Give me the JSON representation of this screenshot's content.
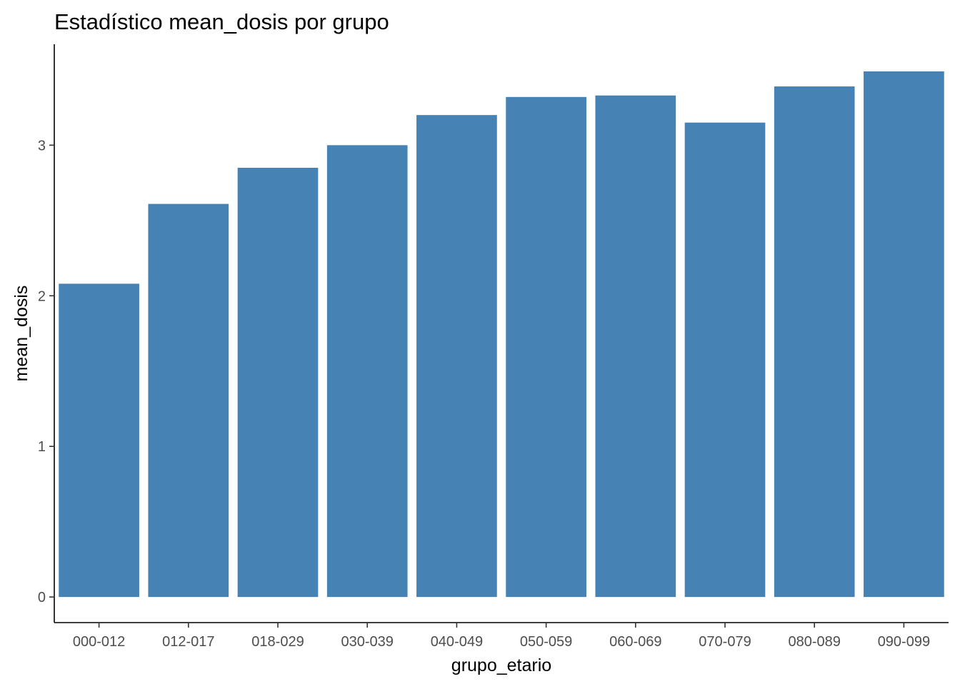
{
  "chart_data": {
    "type": "bar",
    "title": "Estadístico mean_dosis por grupo",
    "xlabel": "grupo_etario",
    "ylabel": "mean_dosis",
    "categories": [
      "000-012",
      "012-017",
      "018-029",
      "030-039",
      "040-049",
      "050-059",
      "060-069",
      "070-079",
      "080-089",
      "090-099"
    ],
    "values": [
      2.08,
      2.61,
      2.85,
      3.0,
      3.2,
      3.32,
      3.33,
      3.15,
      3.39,
      3.49
    ],
    "ylim": [
      -0.17,
      3.67
    ],
    "yticks": [
      0,
      1,
      2,
      3
    ],
    "ytick_labels": [
      "0",
      "1",
      "2",
      "3"
    ],
    "bar_color": "#4682B4",
    "grid": false,
    "legend": "none"
  }
}
